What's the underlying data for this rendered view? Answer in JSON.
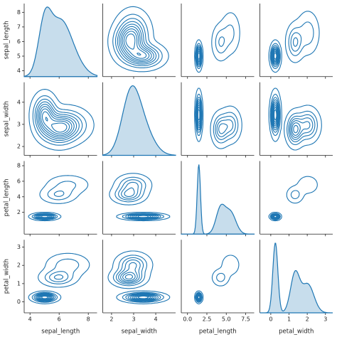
{
  "chart_data": {
    "type": "pairplot-kde",
    "color": "#1f77b4",
    "variables": [
      {
        "name": "sepal_length",
        "lim": [
          3.6,
          8.6
        ],
        "xticks": [
          4,
          6,
          8
        ],
        "yticks": [
          4,
          5,
          6,
          7,
          8
        ]
      },
      {
        "name": "sepal_width",
        "lim": [
          1.6,
          4.9
        ],
        "xticks": [
          2,
          3,
          4
        ],
        "yticks": [
          2,
          3,
          4
        ]
      },
      {
        "name": "petal_length",
        "lim": [
          -0.8,
          8.6
        ],
        "xticks": [
          {
            "value": 0,
            "label": "0.0"
          },
          {
            "value": 2.5,
            "label": "2.5"
          },
          {
            "value": 5,
            "label": "5.0"
          },
          {
            "value": 7.5,
            "label": "7.5"
          }
        ],
        "yticks": [
          2,
          4,
          6,
          8
        ]
      },
      {
        "name": "petal_width",
        "lim": [
          -0.6,
          3.4
        ],
        "xticks": [
          0,
          1,
          2,
          3
        ],
        "yticks": [
          0,
          1,
          2,
          3
        ]
      }
    ],
    "groups": [
      {
        "mean": [
          5.01,
          3.43,
          1.46,
          0.25
        ],
        "sd": [
          0.35,
          0.38,
          0.17,
          0.11
        ]
      },
      {
        "mean": [
          5.94,
          2.77,
          4.26,
          1.33
        ],
        "sd": [
          0.52,
          0.31,
          0.47,
          0.2
        ]
      },
      {
        "mean": [
          6.59,
          2.97,
          5.55,
          2.03
        ],
        "sd": [
          0.64,
          0.32,
          0.55,
          0.27
        ]
      }
    ]
  }
}
